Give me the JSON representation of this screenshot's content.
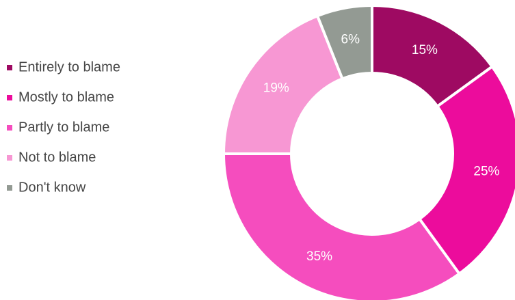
{
  "chart_data": {
    "type": "donut",
    "categories": [
      "Entirely to blame",
      "Mostly to blame",
      "Partly to blame",
      "Not to blame",
      "Don't know"
    ],
    "values": [
      15,
      25,
      35,
      19,
      6
    ],
    "value_labels": [
      "15%",
      "25%",
      "35%",
      "19%",
      "6%"
    ],
    "colors": [
      "#9e0a62",
      "#ec0c9c",
      "#f54dbe",
      "#f797d3",
      "#939a93"
    ],
    "legend": "left"
  }
}
